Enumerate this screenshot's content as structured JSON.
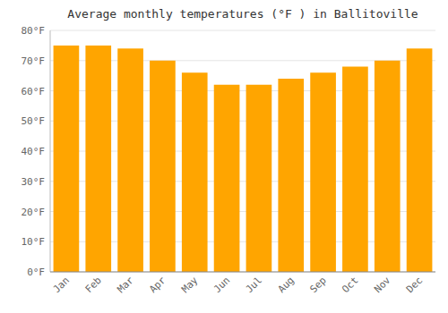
{
  "chart_data": {
    "type": "bar",
    "title": "Average monthly temperatures (°F ) in Ballitoville",
    "categories": [
      "Jan",
      "Feb",
      "Mar",
      "Apr",
      "May",
      "Jun",
      "Jul",
      "Aug",
      "Sep",
      "Oct",
      "Nov",
      "Dec"
    ],
    "values": [
      75,
      75,
      74,
      70,
      66,
      62,
      62,
      64,
      66,
      68,
      70,
      74
    ],
    "color": "#FFA500",
    "ylim": [
      0,
      80
    ],
    "yticks": [
      {
        "value": 0,
        "label": "0°F"
      },
      {
        "value": 10,
        "label": "10°F"
      },
      {
        "value": 20,
        "label": "20°F"
      },
      {
        "value": 30,
        "label": "30°F"
      },
      {
        "value": 40,
        "label": "40°F"
      },
      {
        "value": 50,
        "label": "50°F"
      },
      {
        "value": 60,
        "label": "60°F"
      },
      {
        "value": 70,
        "label": "70°F"
      },
      {
        "value": 80,
        "label": "80°F"
      }
    ],
    "grid": true
  }
}
